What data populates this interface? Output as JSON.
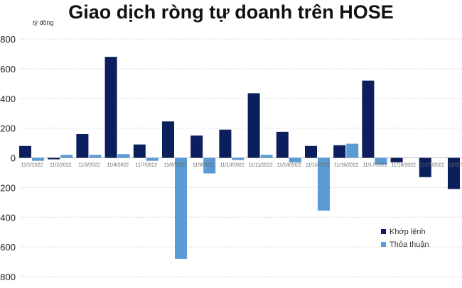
{
  "chart_data": {
    "type": "bar",
    "title": "Giao dịch ròng tự doanh trên HOSE",
    "ylabel": "tỷ đồng",
    "xlabel": "",
    "ylim": [
      -800,
      800
    ],
    "yticks": [
      -800,
      -600,
      -400,
      -200,
      0,
      200,
      400,
      600,
      800
    ],
    "ytick_labels": [
      "800",
      "600",
      "400",
      "200",
      "0",
      "200",
      "400",
      "600",
      "800"
    ],
    "grid": true,
    "legend_position": "bottom-right",
    "categories": [
      "11/1/2022",
      "11/2/2022",
      "11/3/2022",
      "11/4/2022",
      "11/7/2022",
      "11/8/2022",
      "11/9/2022",
      "11/10/2022",
      "11/11/2022",
      "11/14/2022",
      "11/15/2022",
      "11/16/2022",
      "11/17/2022",
      "11/18/2022",
      "11/21/2022",
      "11/22/2022"
    ],
    "series": [
      {
        "name": "Khớp lệnh",
        "color": "#0b1f5c",
        "values": [
          80,
          -10,
          160,
          680,
          90,
          245,
          150,
          190,
          435,
          175,
          80,
          85,
          520,
          -30,
          -130,
          -210
        ]
      },
      {
        "name": "Thỏa thuận",
        "color": "#5b9bd5",
        "values": [
          -20,
          20,
          20,
          25,
          -20,
          -680,
          -105,
          -15,
          20,
          -30,
          -355,
          95,
          -45,
          0,
          0,
          0
        ]
      }
    ]
  }
}
